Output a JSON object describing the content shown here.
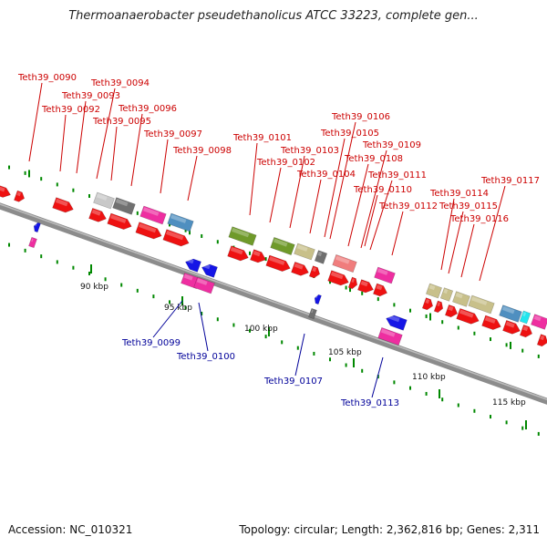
{
  "title": "Thermoanaerobacter pseudethanolicus ATCC 33223, complete gen...",
  "footer": {
    "accession": "Accession: NC_010321",
    "summary": "Topology: circular; Length: 2,362,816 bp; Genes: 2,311"
  },
  "colors": {
    "backbone": "#7f7f7f",
    "forward_label": "#cc0000",
    "reverse_label": "#000099",
    "tick": "#008800"
  },
  "kbp_labels": [
    "90 kbp",
    "95 kbp",
    "100 kbp",
    "105 kbp",
    "110 kbp",
    "115 kbp"
  ],
  "forward_genes": [
    "Teth39_0090",
    "Teth39_0092",
    "Teth39_0093",
    "Teth39_0094",
    "Teth39_0095",
    "Teth39_0096",
    "Teth39_0097",
    "Teth39_0098",
    "Teth39_0101",
    "Teth39_0102",
    "Teth39_0103",
    "Teth39_0104",
    "Teth39_0105",
    "Teth39_0106",
    "Teth39_0108",
    "Teth39_0109",
    "Teth39_0110",
    "Teth39_0111",
    "Teth39_0112",
    "Teth39_0114",
    "Teth39_0115",
    "Teth39_0116",
    "Teth39_0117"
  ],
  "reverse_genes": [
    "Teth39_0099",
    "Teth39_0100",
    "Teth39_0107",
    "Teth39_0113"
  ]
}
